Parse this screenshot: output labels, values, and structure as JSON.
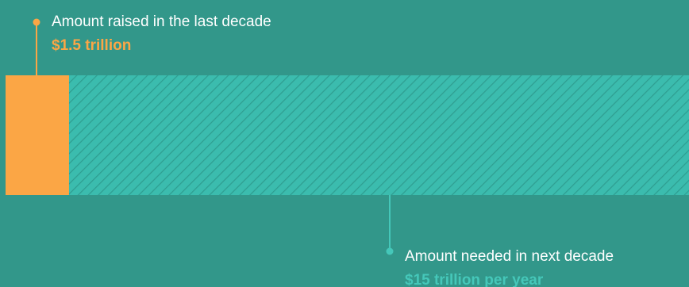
{
  "colors": {
    "background": "#32978a",
    "raised": "#fba645",
    "needed_fill": "#3bbcae",
    "needed_hatch": "#2f9d90",
    "needed_accent": "#45c7b9"
  },
  "chart_data": {
    "type": "bar",
    "orientation": "horizontal",
    "unit": "trillion USD",
    "grid": false,
    "series": [
      {
        "key": "raised",
        "label": "Amount raised in the last decade",
        "value_text": "$1.5 trillion",
        "value": 1.5
      },
      {
        "key": "needed",
        "label": "Amount needed in next decade",
        "value_text": "$15 trillion per year",
        "value": 15
      }
    ]
  }
}
